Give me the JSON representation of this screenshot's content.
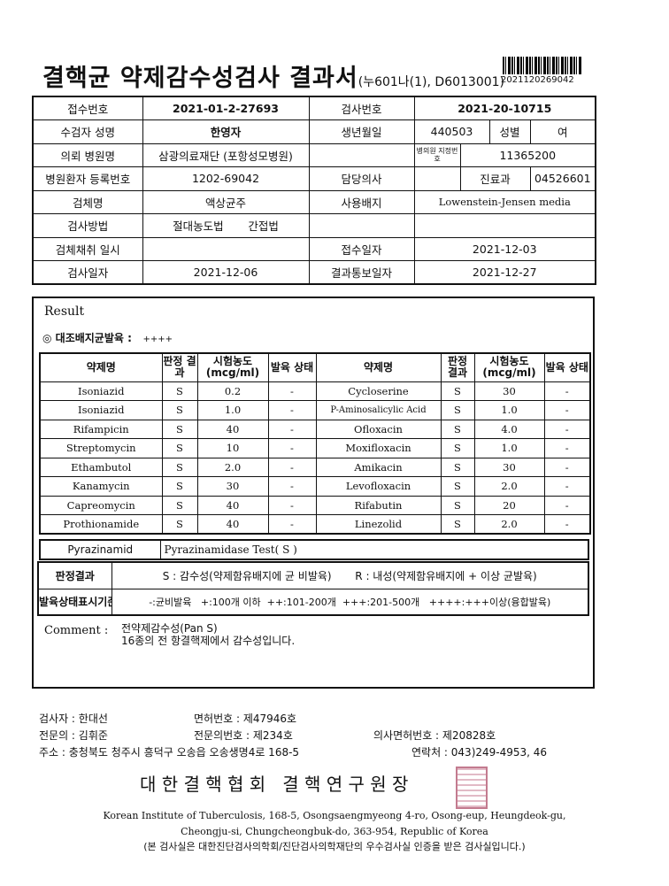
{
  "header": {
    "title": "결핵균 약제감수성검사 결과서",
    "code": "(누601나(1), D6013001)",
    "barcode_number": "2021120269042"
  },
  "info": {
    "receipt_no_label": "접수번호",
    "receipt_no": "2021-01-2-27693",
    "test_no_label": "검사번호",
    "test_no": "2021-20-10715",
    "patient_name_label": "수검자 성명",
    "patient_name": "한영자",
    "birth_label": "생년월일",
    "birth": "440503",
    "sex_label": "성별",
    "sex": "여",
    "hospital_label": "의뢰 병원명",
    "hospital": "삼광의료재단 (포항성모병원)",
    "hospital_code_label": "병의원 지정번호",
    "hospital_code": "11365200",
    "reg_no_label": "병원환자 등록번호",
    "reg_no": "1202-69042",
    "doctor_label": "담당의사",
    "doctor": "",
    "dept_label": "진료과",
    "dept": "04526601",
    "specimen_label": "검체명",
    "specimen": "액상균주",
    "medium_label": "사용배지",
    "medium": "Lowenstein-Jensen media",
    "method_label": "검사방법",
    "method_1": "절대농도법",
    "method_2": "간접법",
    "collect_label": "검체채취 일시",
    "collect": "",
    "received_label": "접수일자",
    "received": "2021-12-03",
    "test_date_label": "검사일자",
    "test_date": "2021-12-06",
    "report_date_label": "결과통보일자",
    "report_date": "2021-12-27"
  },
  "result": {
    "title": "Result",
    "control_label": "◎ 대조배지균발육 :",
    "control_value": "++++",
    "headers": [
      "약제명",
      "판정 결과",
      "시험농도 (mcg/ml)",
      "발육 상태",
      "약제명",
      "판정 결과",
      "시험농도 (mcg/ml)",
      "발육 상태"
    ],
    "rows": [
      [
        "Isoniazid",
        "S",
        "0.2",
        "-",
        "Cycloserine",
        "S",
        "30",
        "-"
      ],
      [
        "Isoniazid",
        "S",
        "1.0",
        "-",
        "P-Aminosalicylic Acid",
        "S",
        "1.0",
        "-"
      ],
      [
        "Rifampicin",
        "S",
        "40",
        "-",
        "Ofloxacin",
        "S",
        "4.0",
        "-"
      ],
      [
        "Streptomycin",
        "S",
        "10",
        "-",
        "Moxifloxacin",
        "S",
        "1.0",
        "-"
      ],
      [
        "Ethambutol",
        "S",
        "2.0",
        "-",
        "Amikacin",
        "S",
        "30",
        "-"
      ],
      [
        "Kanamycin",
        "S",
        "30",
        "-",
        "Levofloxacin",
        "S",
        "2.0",
        "-"
      ],
      [
        "Capreomycin",
        "S",
        "40",
        "-",
        "Rifabutin",
        "S",
        "20",
        "-"
      ],
      [
        "Prothionamide",
        "S",
        "40",
        "-",
        "Linezolid",
        "S",
        "2.0",
        "-"
      ]
    ],
    "pza_label": "Pyrazinamid",
    "pza_value": "Pyrazinamidase Test( S )",
    "judge_label": "판정결과",
    "judge_s": "S : 감수성(약제함유배지에 균 비발육)",
    "judge_r": "R : 내성(약제함유배지에 + 이상 균발육)",
    "growth_label": "발육상태표시기준",
    "growth_text": "-:균비발육   +:100개 이하  ++:101-200개  +++:201-500개   ++++:+++이상(융합발육)",
    "comment_label": "Comment :",
    "comment_1": "전약제감수성(Pan S)",
    "comment_2": "16종의 전 항결핵제에서 감수성입니다."
  },
  "footer": {
    "tester": "검사자 :  한대선",
    "license": "면허번호   :  제47946호",
    "specialist": "전문의 :  김휘준",
    "specialist_no": "전문의번호 :  제234호",
    "doctor_license": "의사면허번호 :  제20828호",
    "address": "주소 : 충청북도 청주시 흥덕구 오송읍 오송생명4로 168-5",
    "contact": "연락처 :  043)249-4953, 46",
    "institute": "대 한 결 핵 협 회   결 핵 연 구 원 장",
    "en_1": "Korean Institute of Tuberculosis, 168-5, Osongsaengmyeong 4-ro, Osong-eup, Heungdeok-gu,",
    "en_2": "Cheongju-si, Chungcheongbuk-do, 363-954, Republic of Korea",
    "note": "(본 검사실은 대한진단검사의학회/진단검사의학재단의 우수검사실 인증을 받은 검사실입니다.)",
    "seal_color": "#b0506a"
  }
}
